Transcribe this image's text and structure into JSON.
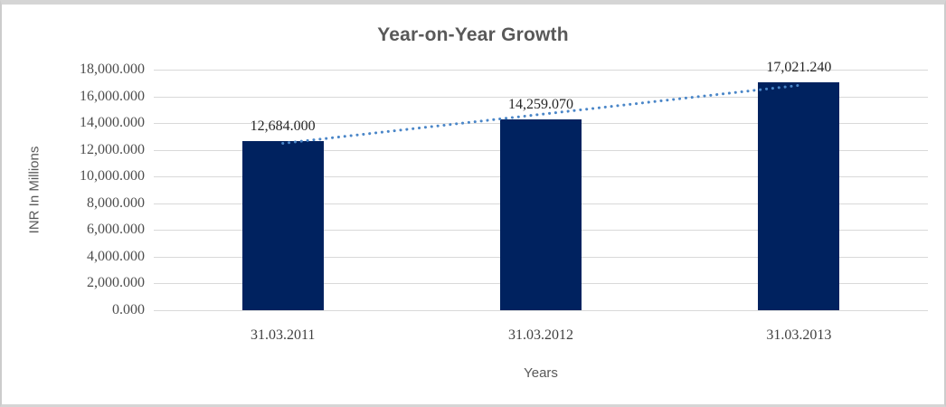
{
  "chart_data": {
    "type": "bar",
    "title": "Year-on-Year Growth",
    "xlabel": "Years",
    "ylabel": "INR In Millions",
    "categories": [
      "31.03.2011",
      "31.03.2012",
      "31.03.2013"
    ],
    "values": [
      12684.0,
      14259.07,
      17021.24
    ],
    "data_labels": [
      "12,684.000",
      "14,259.070",
      "17,021.240"
    ],
    "ylim": [
      0,
      18000
    ],
    "ytick_step": 2000,
    "ytick_labels_top_to_bottom": [
      "18,000.000",
      "16,000.000",
      "14,000.000",
      "12,000.000",
      "10,000.000",
      "8,000.000",
      "6,000.000",
      "4,000.000",
      "2,000.000",
      "0.000"
    ],
    "grid": true,
    "legend": "none",
    "trendline": {
      "type": "linear",
      "style": "dotted"
    },
    "colors": {
      "bar": "#00225f",
      "trendline": "#4a86c8",
      "gridline": "#d9d9d9",
      "title_text": "#595959",
      "axis_title_text": "#595959",
      "tick_text": "#4d4d4d",
      "data_label_text": "#262626",
      "frame_border": "#d5d5d5"
    }
  }
}
